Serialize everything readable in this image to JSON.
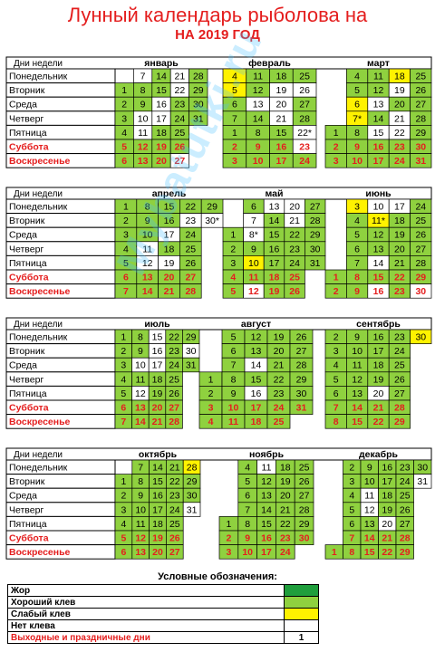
{
  "title": {
    "line1": "Лунный календарь рыболова на",
    "line2": "НА 2019 ГОД"
  },
  "weekday_header": "Дни недели",
  "weekdays": [
    "Понедельник",
    "Вторник",
    "Среда",
    "Четверг",
    "Пятница",
    "Суббота",
    "Воскресенье"
  ],
  "colors": {
    "zhor": "#1f9e3c",
    "good": "#8fd13f",
    "weak": "#fff200",
    "none": "#ffffff",
    "weekend_text": "#e41e1e"
  },
  "quarters": [
    {
      "months": [
        {
          "name": "январь",
          "cells": [
            [
              "",
              "N:7",
              "G:14",
              "N:21",
              "G:28"
            ],
            [
              "G:1",
              "G:8",
              "G:15",
              "N:22",
              "G:29"
            ],
            [
              "G:2",
              "G:9",
              "N:16",
              "G:23",
              "G:30"
            ],
            [
              "G:3",
              "N:10",
              "N:17",
              "G:24",
              "G:31"
            ],
            [
              "G:4",
              "N:11",
              "G:18",
              "G:25",
              ""
            ],
            [
              "G:5",
              "G:12",
              "G:19",
              "G:26",
              ""
            ],
            [
              "G:6",
              "G:13",
              "G:20",
              "N:27",
              ""
            ]
          ]
        },
        {
          "name": "февраль",
          "cells": [
            [
              "Y:4",
              "G:11",
              "G:18",
              "G:25"
            ],
            [
              "Y:5",
              "G:12",
              "N:19",
              "N:26"
            ],
            [
              "G:6",
              "N:13",
              "N:20",
              "G:27"
            ],
            [
              "G:7",
              "G:14",
              "N:21",
              "G:28"
            ],
            [
              "G:1",
              "G:8",
              "G:15",
              "N:22*"
            ],
            [
              "G:2",
              "G:9",
              "G:16",
              "N:23"
            ],
            [
              "G:3",
              "G:10",
              "G:17",
              "G:24"
            ]
          ]
        },
        {
          "name": "март",
          "cells": [
            [
              "",
              "G:4",
              "G:11",
              "Y:18",
              "G:25"
            ],
            [
              "",
              "G:5",
              "G:12",
              "N:19",
              "G:26"
            ],
            [
              "",
              "Y:6",
              "N:13",
              "G:20",
              "G:27"
            ],
            [
              "",
              "Y:7*",
              "G:14",
              "N:21",
              "G:28"
            ],
            [
              "G:1",
              "G:8",
              "N:15",
              "N:22",
              "G:29"
            ],
            [
              "G:2",
              "G:9",
              "G:16",
              "G:23",
              "G:30"
            ],
            [
              "G:3",
              "G:10",
              "G:17",
              "G:24",
              "G:31"
            ]
          ]
        }
      ]
    },
    {
      "months": [
        {
          "name": "апрель",
          "cells": [
            [
              "G:1",
              "G:8",
              "G:15",
              "G:22",
              "G:29"
            ],
            [
              "G:2",
              "G:9",
              "G:16",
              "N:23",
              "N:30*"
            ],
            [
              "G:3",
              "G:10",
              "N:17",
              "G:24",
              ""
            ],
            [
              "G:4",
              "N:11",
              "G:18",
              "G:25",
              ""
            ],
            [
              "G:5",
              "N:12",
              "N:19",
              "G:26",
              ""
            ],
            [
              "G:6",
              "G:13",
              "G:20",
              "G:27",
              ""
            ],
            [
              "G:7",
              "G:14",
              "G:21",
              "G:28",
              ""
            ]
          ]
        },
        {
          "name": "май",
          "cells": [
            [
              "",
              "G:6",
              "N:13",
              "N:20",
              "G:27"
            ],
            [
              "",
              "N:7",
              "G:14",
              "N:21",
              "G:28"
            ],
            [
              "G:1",
              "N:8*",
              "G:15",
              "G:22",
              "G:29"
            ],
            [
              "G:2",
              "G:9",
              "G:16",
              "G:23",
              "G:30"
            ],
            [
              "G:3",
              "Y:10",
              "G:17",
              "G:24",
              "G:31"
            ],
            [
              "G:4",
              "G:11",
              "G:18",
              "G:25",
              ""
            ],
            [
              "G:5",
              "N:12",
              "G:19",
              "G:26",
              ""
            ]
          ]
        },
        {
          "name": "июнь",
          "cells": [
            [
              "",
              "Y:3",
              "N:10",
              "N:17",
              "G:24"
            ],
            [
              "",
              "G:4",
              "Y:11*",
              "G:18",
              "G:25"
            ],
            [
              "",
              "G:5",
              "G:12",
              "G:19",
              "G:26"
            ],
            [
              "",
              "G:6",
              "G:13",
              "G:20",
              "G:27"
            ],
            [
              "",
              "G:7",
              "N:14",
              "G:21",
              "G:28"
            ],
            [
              "G:1",
              "G:8",
              "G:15",
              "G:22",
              "G:29"
            ],
            [
              "G:2",
              "G:9",
              "N:16",
              "G:23",
              "N:30"
            ]
          ]
        }
      ]
    },
    {
      "months": [
        {
          "name": "июль",
          "cells": [
            [
              "G:1",
              "G:8",
              "N:15",
              "G:22",
              "G:29"
            ],
            [
              "G:2",
              "G:9",
              "N:16",
              "G:23",
              "N:30"
            ],
            [
              "G:3",
              "N:10",
              "N:17",
              "G:24",
              "G:31"
            ],
            [
              "G:4",
              "G:11",
              "G:18",
              "G:25",
              ""
            ],
            [
              "G:5",
              "N:12",
              "G:19",
              "G:26",
              ""
            ],
            [
              "G:6",
              "G:13",
              "G:20",
              "G:27",
              ""
            ],
            [
              "G:7",
              "G:14",
              "G:21",
              "G:28",
              ""
            ]
          ]
        },
        {
          "name": "август",
          "cells": [
            [
              "",
              "G:5",
              "G:12",
              "G:19",
              "G:26"
            ],
            [
              "",
              "G:6",
              "G:13",
              "G:20",
              "G:27"
            ],
            [
              "",
              "G:7",
              "N:14",
              "G:21",
              "G:28"
            ],
            [
              "G:1",
              "G:8",
              "G:15",
              "G:22",
              "G:29"
            ],
            [
              "G:2",
              "G:9",
              "N:16",
              "G:23",
              "G:30"
            ],
            [
              "G:3",
              "G:10",
              "G:17",
              "G:24",
              "G:31"
            ],
            [
              "G:4",
              "G:11",
              "G:18",
              "G:25",
              ""
            ]
          ]
        },
        {
          "name": "сентябрь",
          "cells": [
            [
              "G:2",
              "G:9",
              "G:16",
              "G:23",
              "Y:30"
            ],
            [
              "G:3",
              "G:10",
              "G:17",
              "G:24",
              ""
            ],
            [
              "G:4",
              "G:11",
              "G:18",
              "G:25",
              ""
            ],
            [
              "G:5",
              "G:12",
              "G:19",
              "G:26",
              ""
            ],
            [
              "G:6",
              "G:13",
              "N:20",
              "G:27",
              ""
            ],
            [
              "G:7",
              "G:14",
              "G:21",
              "G:28",
              ""
            ],
            [
              "G:8",
              "G:15",
              "G:22",
              "G:29",
              ""
            ]
          ]
        }
      ]
    },
    {
      "months": [
        {
          "name": "октябрь",
          "cells": [
            [
              "",
              "G:7",
              "G:14",
              "G:21",
              "Y:28"
            ],
            [
              "G:1",
              "G:8",
              "G:15",
              "G:22",
              "G:29"
            ],
            [
              "G:2",
              "G:9",
              "G:16",
              "G:23",
              "G:30"
            ],
            [
              "G:3",
              "G:10",
              "G:17",
              "G:24",
              "N:31"
            ],
            [
              "G:4",
              "G:11",
              "G:18",
              "G:25",
              ""
            ],
            [
              "G:5",
              "G:12",
              "G:19",
              "G:26",
              ""
            ],
            [
              "G:6",
              "G:13",
              "G:20",
              "G:27",
              ""
            ]
          ]
        },
        {
          "name": "ноябрь",
          "cells": [
            [
              "",
              "G:4",
              "N:11",
              "G:18",
              "G:25"
            ],
            [
              "",
              "G:5",
              "G:12",
              "G:19",
              "G:26"
            ],
            [
              "",
              "G:6",
              "G:13",
              "G:20",
              "G:27"
            ],
            [
              "",
              "G:7",
              "G:14",
              "G:21",
              "G:28"
            ],
            [
              "G:1",
              "G:8",
              "G:15",
              "G:22",
              "G:29"
            ],
            [
              "G:2",
              "G:9",
              "G:16",
              "G:23",
              "G:30"
            ],
            [
              "G:3",
              "G:10",
              "G:17",
              "G:24",
              ""
            ]
          ]
        },
        {
          "name": "декабрь",
          "cells": [
            [
              "",
              "G:2",
              "G:9",
              "G:16",
              "G:23",
              "G:30"
            ],
            [
              "",
              "G:3",
              "G:10",
              "G:17",
              "G:24",
              "N:31"
            ],
            [
              "",
              "G:4",
              "N:11",
              "G:18",
              "G:25",
              ""
            ],
            [
              "",
              "G:5",
              "N:12",
              "G:19",
              "G:26",
              ""
            ],
            [
              "",
              "G:6",
              "G:13",
              "N:20",
              "G:27",
              ""
            ],
            [
              "",
              "G:7",
              "G:14",
              "G:21",
              "G:28",
              ""
            ],
            [
              "G:1",
              "G:8",
              "G:15",
              "G:22",
              "G:29",
              ""
            ]
          ]
        }
      ]
    }
  ],
  "legend": {
    "title": "Условные обозначения:",
    "items": [
      {
        "label": "Жор",
        "swatch": "zhor",
        "text": ""
      },
      {
        "label": "Хороший клев",
        "swatch": "good",
        "text": ""
      },
      {
        "label": "Слабый клев",
        "swatch": "weak",
        "text": ""
      },
      {
        "label": "Нет клева",
        "swatch": "none",
        "text": ""
      },
      {
        "label": "Выходные и праздничные дни",
        "swatch": "none",
        "text": "1"
      }
    ]
  },
  "watermark": "Mybatutki.ru"
}
